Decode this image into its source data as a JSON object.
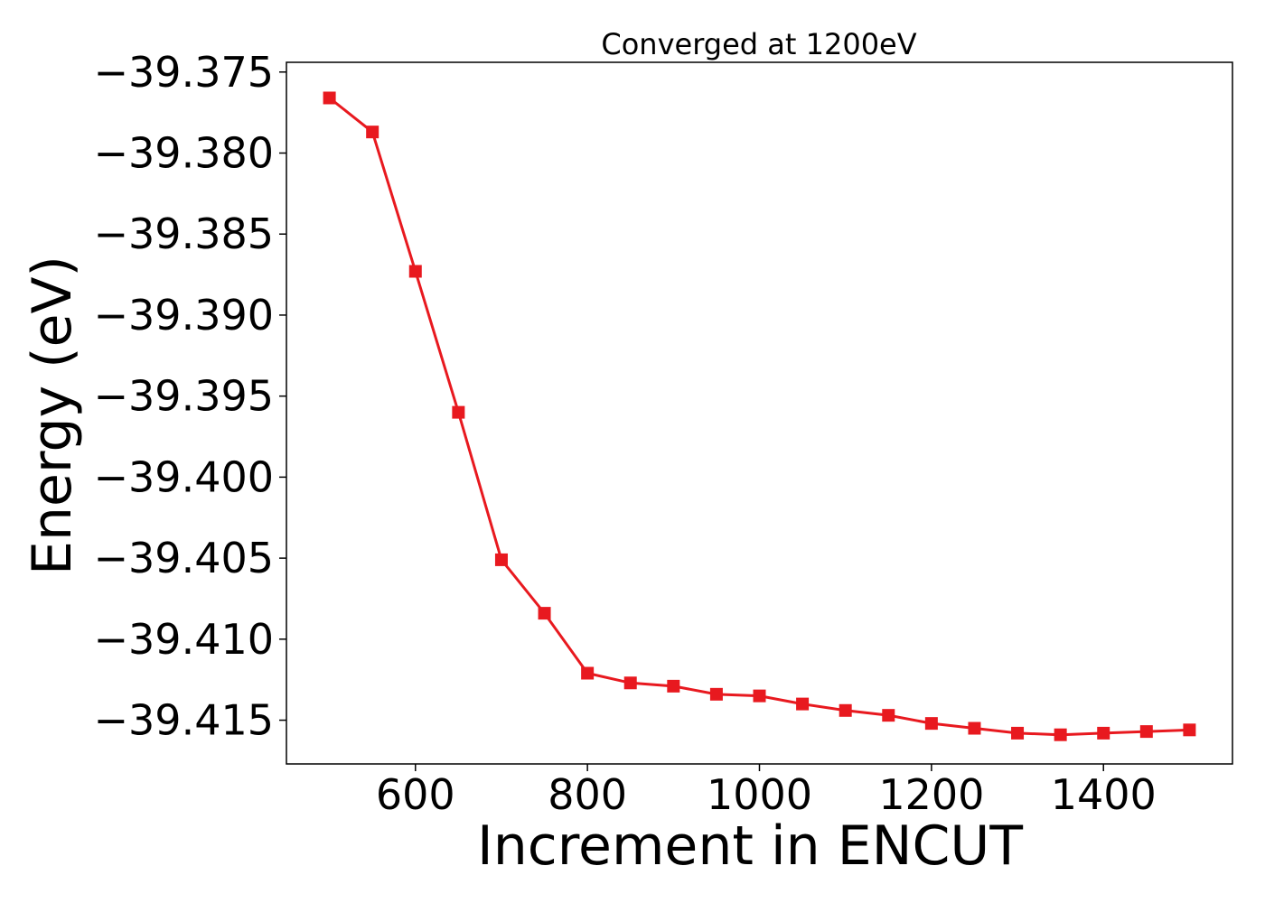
{
  "chart_data": {
    "type": "line",
    "title": "Converged at 1200eV",
    "xlabel": "Increment in ENCUT",
    "ylabel": "Energy (eV)",
    "xlim": [
      450,
      1550
    ],
    "ylim": [
      -39.4177,
      -39.3744
    ],
    "xticks": [
      600,
      800,
      1000,
      1200,
      1400
    ],
    "xtick_labels": [
      "600",
      "800",
      "1000",
      "1200",
      "1400"
    ],
    "yticks": [
      -39.375,
      -39.38,
      -39.385,
      -39.39,
      -39.395,
      -39.4,
      -39.405,
      -39.41,
      -39.415
    ],
    "ytick_labels": [
      "−39.375",
      "−39.380",
      "−39.385",
      "−39.390",
      "−39.395",
      "−39.400",
      "−39.405",
      "−39.410",
      "−39.415"
    ],
    "grid": false,
    "series_color": "#e8191f",
    "marker": "square",
    "x": [
      500,
      550,
      600,
      650,
      700,
      750,
      800,
      850,
      900,
      950,
      1000,
      1050,
      1100,
      1150,
      1200,
      1250,
      1300,
      1350,
      1400,
      1450,
      1500
    ],
    "y": [
      -39.3766,
      -39.3787,
      -39.3873,
      -39.396,
      -39.4051,
      -39.4084,
      -39.4121,
      -39.4127,
      -39.4129,
      -39.4134,
      -39.4135,
      -39.414,
      -39.4144,
      -39.4147,
      -39.4152,
      -39.4155,
      -39.4158,
      -39.4159,
      -39.4158,
      -39.4157,
      -39.4156
    ]
  }
}
